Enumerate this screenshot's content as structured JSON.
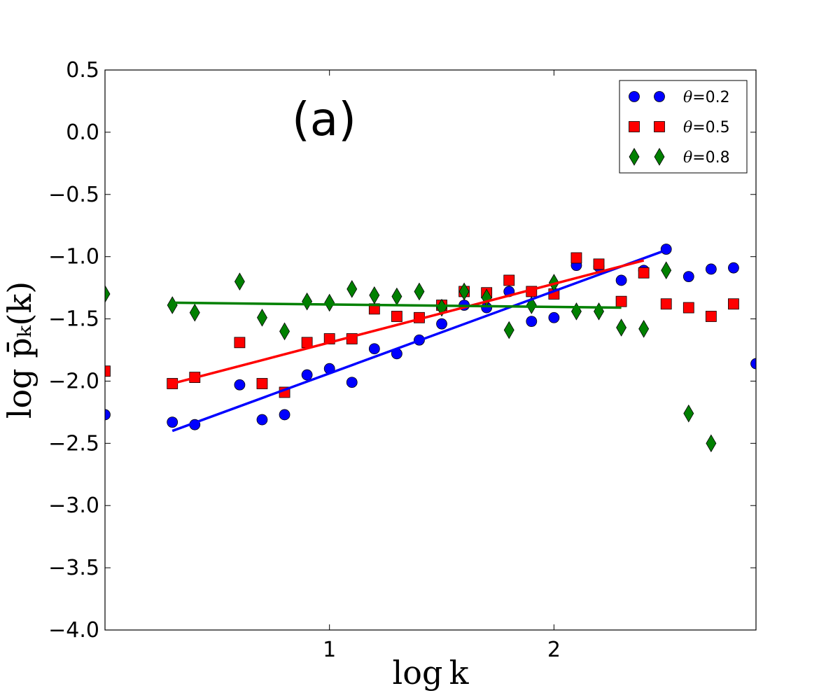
{
  "chart_data": {
    "type": "scatter",
    "panel_label": "(a)",
    "xlabel": "log k",
    "ylabel": "log p̄ₖ(k)",
    "xlim": [
      0.0,
      2.9
    ],
    "ylim": [
      -4.0,
      0.5
    ],
    "xticks": [
      1,
      2
    ],
    "xtick_labels": [
      "1",
      "2"
    ],
    "yticks": [
      0.5,
      0.0,
      -0.5,
      -1.0,
      -1.5,
      -2.0,
      -2.5,
      -3.0,
      -3.5,
      -4.0
    ],
    "ytick_labels": [
      "0.5",
      "0.0",
      "−0.5",
      "−1.0",
      "−1.5",
      "−2.0",
      "−2.5",
      "−3.0",
      "−3.5",
      "−4.0"
    ],
    "legend_location": "top-right",
    "series": [
      {
        "name": "θ=0.2",
        "theta_symbol": "θ",
        "theta_value": "=0.2",
        "marker": "circle",
        "color": "#0000ff",
        "x": [
          0.0,
          0.3,
          0.4,
          0.6,
          0.7,
          0.8,
          0.9,
          1.0,
          1.1,
          1.2,
          1.3,
          1.4,
          1.5,
          1.6,
          1.7,
          1.8,
          1.9,
          2.0,
          2.1,
          2.2,
          2.3,
          2.4,
          2.5,
          2.6,
          2.7,
          2.8,
          2.9
        ],
        "y": [
          -2.27,
          -2.33,
          -2.35,
          -2.03,
          -2.31,
          -2.27,
          -1.95,
          -1.9,
          -2.01,
          -1.74,
          -1.78,
          -1.67,
          -1.54,
          -1.39,
          -1.41,
          -1.28,
          -1.52,
          -1.49,
          -1.07,
          -1.08,
          -1.19,
          -1.11,
          -0.94,
          -1.16,
          -1.1,
          -1.09,
          -1.86
        ],
        "fit": {
          "x": [
            0.3,
            2.48
          ],
          "y": [
            -2.4,
            -0.96
          ]
        }
      },
      {
        "name": "θ=0.5",
        "theta_symbol": "θ",
        "theta_value": "=0.5",
        "marker": "square",
        "color": "#ff0000",
        "x": [
          0.0,
          0.3,
          0.4,
          0.6,
          0.7,
          0.8,
          0.9,
          1.0,
          1.1,
          1.2,
          1.3,
          1.4,
          1.5,
          1.6,
          1.7,
          1.8,
          1.9,
          2.0,
          2.1,
          2.2,
          2.3,
          2.4,
          2.5,
          2.6,
          2.7,
          2.8
        ],
        "y": [
          -1.92,
          -2.02,
          -1.97,
          -1.69,
          -2.02,
          -2.09,
          -1.69,
          -1.66,
          -1.66,
          -1.42,
          -1.48,
          -1.49,
          -1.39,
          -1.28,
          -1.29,
          -1.19,
          -1.28,
          -1.3,
          -1.01,
          -1.06,
          -1.36,
          -1.13,
          -1.38,
          -1.41,
          -1.48,
          -1.38
        ],
        "fit": {
          "x": [
            0.3,
            2.4
          ],
          "y": [
            -2.02,
            -1.03
          ]
        }
      },
      {
        "name": "θ=0.8",
        "theta_symbol": "θ",
        "theta_value": "=0.8",
        "marker": "diamond",
        "color": "#008000",
        "x": [
          0.0,
          0.3,
          0.4,
          0.6,
          0.7,
          0.8,
          0.9,
          1.0,
          1.1,
          1.2,
          1.3,
          1.4,
          1.5,
          1.6,
          1.7,
          1.8,
          1.9,
          2.0,
          2.1,
          2.2,
          2.3,
          2.4,
          2.5,
          2.6,
          2.7
        ],
        "y": [
          -1.3,
          -1.39,
          -1.45,
          -1.2,
          -1.49,
          -1.6,
          -1.36,
          -1.37,
          -1.26,
          -1.31,
          -1.32,
          -1.28,
          -1.41,
          -1.28,
          -1.33,
          -1.59,
          -1.39,
          -1.21,
          -1.44,
          -1.44,
          -1.57,
          -1.58,
          -1.11,
          -2.26,
          -2.5
        ],
        "fit": {
          "x": [
            0.3,
            2.3
          ],
          "y": [
            -1.37,
            -1.41
          ]
        }
      }
    ]
  }
}
